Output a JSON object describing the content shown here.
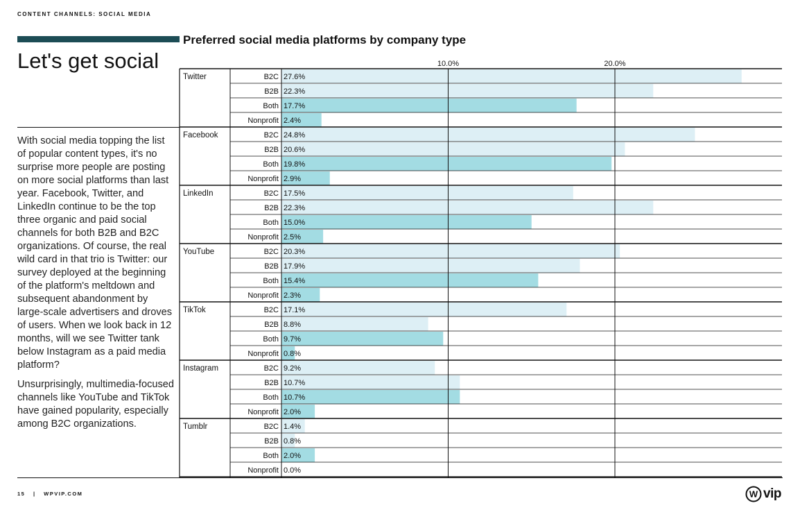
{
  "page": {
    "section_label": "CONTENT CHANNELS: SOCIAL MEDIA",
    "headline": "Let's get social",
    "body_paragraphs": [
      "With social media topping the list of popular content types, it's no surprise more people are posting on more social platforms than last year. Facebook, Twitter, and LinkedIn continue to be the top three organic and paid social channels for both B2B and B2C organizations. Of course, the real wild card in that trio is Twitter: our survey deployed at the beginning of the platform's meltdown and subsequent abandonment by large-scale advertisers and droves of users. When we look back in 12 months, will we see Twitter tank below Instagram as a paid media platform?",
      "Unsurprisingly, multimedia-focused channels like YouTube and TikTok have gained popularity, especially among B2C organizations."
    ],
    "footer_page": "15",
    "footer_separator": "|",
    "footer_site": "WPVIP.COM",
    "logo_text": "vip"
  },
  "colors": {
    "accent_bar": "#1c4c55",
    "bar_light": "#ddeff5",
    "bar_dark": "#a3dce3"
  },
  "chart_data": {
    "type": "bar",
    "orientation": "horizontal",
    "title": "Preferred social media platforms by company type",
    "xlim": [
      0,
      30
    ],
    "gridlines": [
      10,
      20
    ],
    "tick_labels": [
      "10.0%",
      "20.0%"
    ],
    "groups": [
      {
        "platform": "Twitter",
        "rows": [
          {
            "segment": "B2C",
            "value": 27.6,
            "label": "27.6%"
          },
          {
            "segment": "B2B",
            "value": 22.3,
            "label": "22.3%"
          },
          {
            "segment": "Both",
            "value": 17.7,
            "label": "17.7%"
          },
          {
            "segment": "Nonprofit",
            "value": 2.4,
            "label": "2.4%"
          }
        ]
      },
      {
        "platform": "Facebook",
        "rows": [
          {
            "segment": "B2C",
            "value": 24.8,
            "label": "24.8%"
          },
          {
            "segment": "B2B",
            "value": 20.6,
            "label": "20.6%"
          },
          {
            "segment": "Both",
            "value": 19.8,
            "label": "19.8%"
          },
          {
            "segment": "Nonprofit",
            "value": 2.9,
            "label": "2.9%"
          }
        ]
      },
      {
        "platform": "LinkedIn",
        "rows": [
          {
            "segment": "B2C",
            "value": 17.5,
            "label": "17.5%"
          },
          {
            "segment": "B2B",
            "value": 22.3,
            "label": "22.3%"
          },
          {
            "segment": "Both",
            "value": 15.0,
            "label": "15.0%"
          },
          {
            "segment": "Nonprofit",
            "value": 2.5,
            "label": "2.5%"
          }
        ]
      },
      {
        "platform": "YouTube",
        "rows": [
          {
            "segment": "B2C",
            "value": 20.3,
            "label": "20.3%"
          },
          {
            "segment": "B2B",
            "value": 17.9,
            "label": "17.9%"
          },
          {
            "segment": "Both",
            "value": 15.4,
            "label": "15.4%"
          },
          {
            "segment": "Nonprofit",
            "value": 2.3,
            "label": "2.3%"
          }
        ]
      },
      {
        "platform": "TikTok",
        "rows": [
          {
            "segment": "B2C",
            "value": 17.1,
            "label": "17.1%"
          },
          {
            "segment": "B2B",
            "value": 8.8,
            "label": "8.8%"
          },
          {
            "segment": "Both",
            "value": 9.7,
            "label": "9.7%"
          },
          {
            "segment": "Nonprofit",
            "value": 0.8,
            "label": "0.8%"
          }
        ]
      },
      {
        "platform": "Instagram",
        "rows": [
          {
            "segment": "B2C",
            "value": 9.2,
            "label": "9.2%"
          },
          {
            "segment": "B2B",
            "value": 10.7,
            "label": "10.7%"
          },
          {
            "segment": "Both",
            "value": 10.7,
            "label": "10.7%"
          },
          {
            "segment": "Nonprofit",
            "value": 2.0,
            "label": "2.0%"
          }
        ]
      },
      {
        "platform": "Tumblr",
        "rows": [
          {
            "segment": "B2C",
            "value": 1.4,
            "label": "1.4%"
          },
          {
            "segment": "B2B",
            "value": 0.8,
            "label": "0.8%"
          },
          {
            "segment": "Both",
            "value": 2.0,
            "label": "2.0%"
          },
          {
            "segment": "Nonprofit",
            "value": 0.0,
            "label": "0.0%"
          }
        ]
      }
    ]
  }
}
